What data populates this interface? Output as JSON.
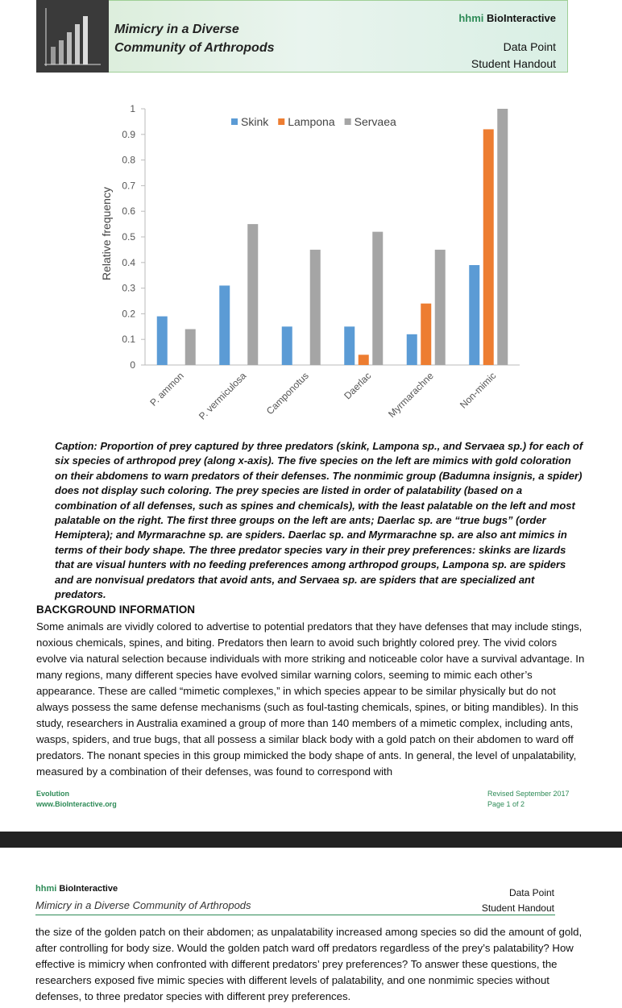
{
  "header": {
    "title_lines": [
      "Mimicry in a Diverse",
      "Community of Arthropods"
    ],
    "brand_hhmi": "hhmi",
    "brand_name": "BioInteractive",
    "doc_type": "Data Point",
    "doc_sub": "Student Handout"
  },
  "chart_data": {
    "type": "bar",
    "y_label": "Relative frequency",
    "categories": [
      "P. ammon",
      "P. vermiculosa",
      "Camponotus",
      "Daerlac",
      "Myrmarachne",
      "Non-mimic"
    ],
    "series": [
      {
        "name": "Skink",
        "color": "#5b9bd5",
        "values": [
          0.19,
          0.31,
          0.15,
          0.15,
          0.12,
          0.39
        ]
      },
      {
        "name": "Lampona",
        "color": "#ed7d31",
        "values": [
          0,
          0,
          0,
          0.04,
          0.24,
          0.92
        ]
      },
      {
        "name": "Servaea",
        "color": "#a5a5a5",
        "values": [
          0.14,
          0.55,
          0.45,
          0.52,
          0.45,
          1
        ]
      }
    ],
    "ylim": [
      0,
      1
    ],
    "yticks": [
      0,
      0.1,
      0.2,
      0.3,
      0.4,
      0.5,
      0.6,
      0.7,
      0.8,
      0.9,
      1
    ],
    "legend": "top"
  },
  "caption": "Caption: Proportion of prey captured by three predators (skink, Lampona sp., and Servaea sp.) for each of six species of arthropod prey (along x-axis). The five species on the left are mimics with gold coloration on their abdomens to warn predators of their defenses. The nonmimic group (Badumna insignis, a spider) does not display such coloring. The prey species are listed in order of palatability (based on a combination of all defenses, such as spines and chemicals), with the least palatable on the left and most palatable on the right. The first three groups on the left are ants; Daerlac sp. are “true bugs” (order Hemiptera); and Myrmarachne sp. are spiders. Daerlac sp. and Myrmarachne sp. are also ant mimics in terms of their body shape. The three predator species vary in their prey preferences: skinks are lizards that are visual hunters with no feeding preferences among arthropod groups, Lampona sp. are spiders and are nonvisual predators that avoid ants, and Servaea sp. are spiders that are specialized ant predators.",
  "background": {
    "heading": "BACKGROUND INFORMATION",
    "text": "Some animals are vividly colored to advertise to potential predators that they have defenses that may include stings, noxious chemicals, spines, and biting. Predators then learn to avoid such brightly colored prey. The vivid colors evolve via natural selection because individuals with more striking and noticeable color have a survival advantage. In many regions, many different species have evolved similar warning colors, seeming to mimic each other’s appearance. These are called “mimetic complexes,” in which species appear to be similar physically but do not always possess the same defense mechanisms (such as foul-tasting chemicals, spines, or biting mandibles). In this study, researchers in Australia examined a group of more than 140 members of a mimetic complex, including ants, wasps, spiders, and true bugs, that all possess a similar black body with a gold patch on their abdomen to ward off predators. The nonant species in this group mimicked the body shape of ants. In general, the level of unpalatability, measured by a combination of their defenses, was found to correspond with"
  },
  "footer": {
    "left1": "Evolution",
    "left2": "www.BioInteractive.org",
    "right1": "Revised September 2017",
    "right2": "Page 1 of 2"
  },
  "page2": {
    "brand_hhmi": "hhmi",
    "brand_name": "BioInteractive",
    "title": "Mimicry in a Diverse Community of Arthropods",
    "doc_type": "Data Point",
    "doc_sub": "Student Handout",
    "text": "the size of the golden patch on their abdomen; as unpalatability increased among species so did the amount of gold, after controlling for body size. Would the golden patch ward off predators regardless of the prey’s palatability? How effective is mimicry when confronted with different predators’ prey preferences? To answer these questions, the researchers exposed five mimic species with different levels of palatability, and one nonmimic species without defenses, to three predator species with different prey preferences."
  }
}
